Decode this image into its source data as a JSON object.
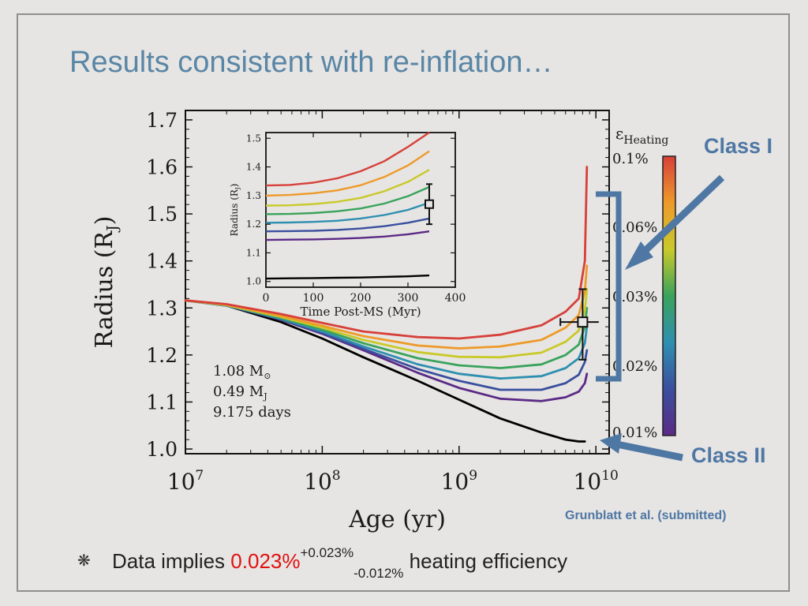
{
  "slide": {
    "title": "Results consistent with re-inflation…",
    "callout_class1": "Class I",
    "callout_class2": "Class II",
    "citation": "Grunblatt et al. (submitted)",
    "bullet": {
      "icon": "asterisk-bullet-icon",
      "prefix": "Data implies",
      "value": "0.023%",
      "upper": "+0.023%",
      "lower": "-0.012%",
      "suffix": "heating efficiency"
    }
  },
  "colors": {
    "title": "#5a86a6",
    "callout": "#4f77a4",
    "highlight": "#e01010"
  },
  "chart_data": [
    {
      "type": "line",
      "xlabel": "Age (yr)",
      "ylabel": "Radius (R_J)",
      "xscale": "log",
      "xlim": [
        10000000.0,
        12500000000.0
      ],
      "ylim": [
        0.99,
        1.72
      ],
      "x_tick_labels": [
        "10^7",
        "10^8",
        "10^9",
        "10^10"
      ],
      "y_tick_labels": [
        "1.0",
        "1.1",
        "1.2",
        "1.3",
        "1.4",
        "1.5",
        "1.6",
        "1.7"
      ],
      "annotation": [
        "1.08 M_⊙",
        "0.49 M_J",
        "9.175 days"
      ],
      "x": [
        10000000.0,
        20000000.0,
        50000000.0,
        100000000.0,
        200000000.0,
        500000000.0,
        1000000000.0,
        2000000000.0,
        4000000000.0,
        6000000000.0,
        7500000000.0,
        8300000000.0,
        8600000000.0
      ],
      "series": [
        {
          "color": "#000000",
          "values": [
            1.316,
            1.305,
            1.27,
            1.235,
            1.195,
            1.145,
            1.105,
            1.065,
            1.035,
            1.02,
            1.016,
            1.016,
            null
          ]
        },
        {
          "color": "#5b2a86",
          "values": [
            1.316,
            1.305,
            1.275,
            1.245,
            1.21,
            1.162,
            1.13,
            1.107,
            1.102,
            1.11,
            1.122,
            1.14,
            1.16
          ]
        },
        {
          "color": "#3a4f9e",
          "values": [
            1.316,
            1.305,
            1.276,
            1.247,
            1.213,
            1.17,
            1.145,
            1.126,
            1.126,
            1.14,
            1.158,
            1.185,
            1.21
          ]
        },
        {
          "color": "#2f8fb0",
          "values": [
            1.316,
            1.305,
            1.277,
            1.25,
            1.218,
            1.18,
            1.16,
            1.15,
            1.155,
            1.172,
            1.193,
            1.225,
            1.26
          ]
        },
        {
          "color": "#3aa35c",
          "values": [
            1.316,
            1.306,
            1.279,
            1.254,
            1.225,
            1.193,
            1.178,
            1.172,
            1.18,
            1.2,
            1.222,
            1.26,
            1.3
          ]
        },
        {
          "color": "#c9c92a",
          "values": [
            1.316,
            1.306,
            1.281,
            1.258,
            1.232,
            1.206,
            1.196,
            1.195,
            1.205,
            1.228,
            1.252,
            1.295,
            1.34
          ]
        },
        {
          "color": "#ee9a2a",
          "values": [
            1.316,
            1.307,
            1.283,
            1.262,
            1.24,
            1.22,
            1.214,
            1.218,
            1.232,
            1.258,
            1.285,
            1.335,
            1.39
          ]
        },
        {
          "color": "#d7403a",
          "values": [
            1.316,
            1.308,
            1.287,
            1.268,
            1.25,
            1.238,
            1.235,
            1.243,
            1.263,
            1.292,
            1.32,
            1.4,
            1.6
          ]
        }
      ],
      "data_point": {
        "x": 8000000000.0,
        "y": 1.27,
        "y_err": [
          0.08,
          0.07
        ],
        "x_err": [
          2500000000.0,
          2500000000.0
        ]
      },
      "colorbar": {
        "label": "ε Heating",
        "tick_labels": [
          "0.1%",
          "0.06%",
          "0.03%",
          "0.02%",
          "0.01%"
        ],
        "colors_top_to_bottom": [
          "#d7403a",
          "#ee9a2a",
          "#c9c92a",
          "#3aa35c",
          "#2f8fb0",
          "#3a4f9e",
          "#5b2a86"
        ]
      }
    },
    {
      "type": "line",
      "inset": true,
      "xlabel": "Time Post-MS (Myr)",
      "ylabel": "Radius (R_J)",
      "xlim": [
        0,
        400
      ],
      "ylim": [
        0.98,
        1.52
      ],
      "x_tick_labels": [
        "0",
        "100",
        "200",
        "300",
        "400"
      ],
      "y_tick_labels": [
        "1.0",
        "1.1",
        "1.2",
        "1.3",
        "1.4",
        "1.5"
      ],
      "x": [
        0,
        50,
        100,
        150,
        200,
        250,
        300,
        345
      ],
      "series": [
        {
          "color": "#d7403a",
          "values": [
            1.335,
            1.337,
            1.345,
            1.36,
            1.385,
            1.42,
            1.47,
            1.52
          ]
        },
        {
          "color": "#ee9a2a",
          "values": [
            1.3,
            1.302,
            1.308,
            1.318,
            1.336,
            1.365,
            1.405,
            1.455
          ]
        },
        {
          "color": "#c9c92a",
          "values": [
            1.265,
            1.266,
            1.27,
            1.278,
            1.292,
            1.315,
            1.348,
            1.39
          ]
        },
        {
          "color": "#3aa35c",
          "values": [
            1.235,
            1.236,
            1.239,
            1.245,
            1.255,
            1.272,
            1.298,
            1.33
          ]
        },
        {
          "color": "#2f8fb0",
          "values": [
            1.205,
            1.206,
            1.208,
            1.212,
            1.22,
            1.232,
            1.25,
            1.275
          ]
        },
        {
          "color": "#3a4f9e",
          "values": [
            1.175,
            1.176,
            1.177,
            1.18,
            1.185,
            1.193,
            1.205,
            1.22
          ]
        },
        {
          "color": "#5b2a86",
          "values": [
            1.145,
            1.146,
            1.147,
            1.149,
            1.152,
            1.157,
            1.165,
            1.175
          ]
        },
        {
          "color": "#000000",
          "values": [
            1.01,
            1.011,
            1.012,
            1.013,
            1.014,
            1.016,
            1.018,
            1.021
          ]
        }
      ],
      "data_point": {
        "x": 345,
        "y": 1.27,
        "y_err": [
          0.07,
          0.07
        ]
      }
    }
  ]
}
